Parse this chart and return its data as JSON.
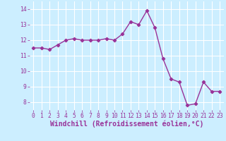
{
  "x": [
    0,
    1,
    2,
    3,
    4,
    5,
    6,
    7,
    8,
    9,
    10,
    11,
    12,
    13,
    14,
    15,
    16,
    17,
    18,
    19,
    20,
    21,
    22,
    23
  ],
  "y": [
    11.5,
    11.5,
    11.4,
    11.7,
    12.0,
    12.1,
    12.0,
    12.0,
    12.0,
    12.1,
    12.0,
    12.4,
    13.2,
    13.0,
    13.9,
    12.8,
    10.8,
    9.5,
    9.3,
    7.8,
    7.9,
    9.3,
    8.7,
    8.7
  ],
  "line_color": "#993399",
  "marker": "D",
  "markersize": 2.2,
  "linewidth": 1.0,
  "bg_color": "#cceeff",
  "grid_color": "#ffffff",
  "xlabel": "Windchill (Refroidissement éolien,°C)",
  "xlabel_color": "#993399",
  "tick_color": "#993399",
  "xlim": [
    -0.5,
    23.5
  ],
  "ylim": [
    7.5,
    14.5
  ],
  "yticks": [
    8,
    9,
    10,
    11,
    12,
    13,
    14
  ],
  "xticks": [
    0,
    1,
    2,
    3,
    4,
    5,
    6,
    7,
    8,
    9,
    10,
    11,
    12,
    13,
    14,
    15,
    16,
    17,
    18,
    19,
    20,
    21,
    22,
    23
  ],
  "tick_fontsize": 5.8,
  "xlabel_fontsize": 7.0
}
